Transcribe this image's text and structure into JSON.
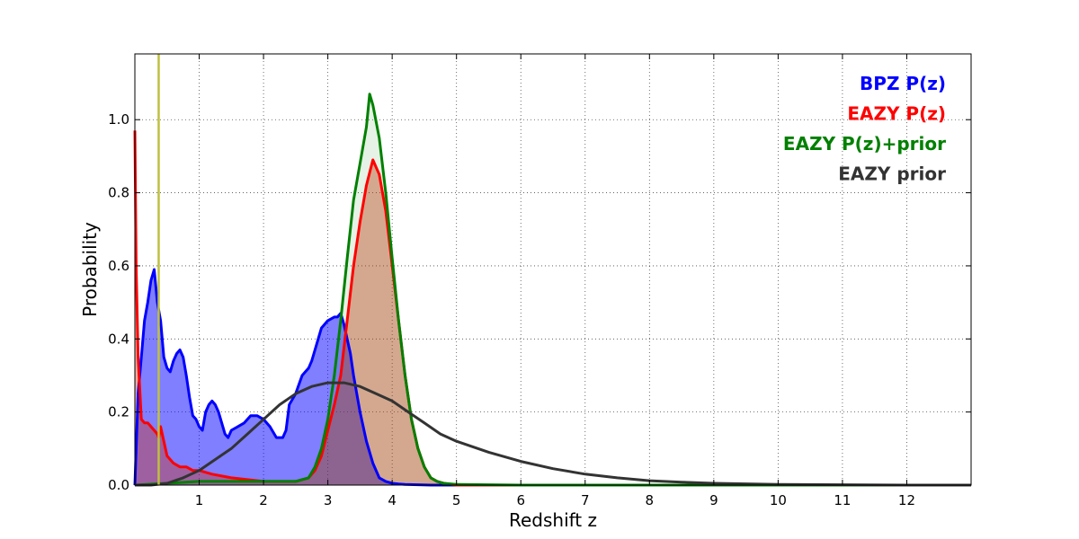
{
  "chart_data": {
    "type": "area",
    "xlabel": "Redshift z",
    "ylabel": "Probability",
    "xlim": [
      0,
      13
    ],
    "ylim": [
      0,
      1.18
    ],
    "x_ticks": [
      1,
      2,
      3,
      4,
      5,
      6,
      7,
      8,
      9,
      10,
      11,
      12
    ],
    "y_ticks": [
      0.0,
      0.2,
      0.4,
      0.6,
      0.8,
      1.0
    ],
    "y_tick_labels": [
      "0.0",
      "0.2",
      "0.4",
      "0.6",
      "0.8",
      "1.0"
    ],
    "grid": true,
    "legend_position": "top-right",
    "vline": {
      "x": 0.37,
      "color": "#bfbf3f"
    },
    "series": [
      {
        "name": "BPZ P(z)",
        "color": "#0000ff",
        "fill": "#0000ff",
        "fill_opacity": 0.5,
        "x": [
          0,
          0.05,
          0.1,
          0.15,
          0.2,
          0.25,
          0.3,
          0.35,
          0.4,
          0.45,
          0.5,
          0.55,
          0.6,
          0.65,
          0.7,
          0.75,
          0.8,
          0.85,
          0.9,
          0.95,
          1.0,
          1.05,
          1.1,
          1.15,
          1.2,
          1.25,
          1.3,
          1.35,
          1.4,
          1.45,
          1.5,
          1.6,
          1.7,
          1.8,
          1.9,
          2.0,
          2.1,
          2.2,
          2.3,
          2.35,
          2.4,
          2.5,
          2.6,
          2.7,
          2.75,
          2.8,
          2.9,
          3.0,
          3.1,
          3.15,
          3.2,
          3.25,
          3.3,
          3.35,
          3.4,
          3.5,
          3.6,
          3.7,
          3.8,
          3.9,
          4.0,
          4.1,
          4.2,
          4.4,
          4.6,
          5.0,
          6.0,
          8.0,
          10.0,
          12.0,
          13.0
        ],
        "y": [
          0.0,
          0.25,
          0.35,
          0.45,
          0.5,
          0.56,
          0.59,
          0.5,
          0.45,
          0.35,
          0.32,
          0.31,
          0.34,
          0.36,
          0.37,
          0.35,
          0.3,
          0.24,
          0.19,
          0.18,
          0.16,
          0.15,
          0.2,
          0.22,
          0.23,
          0.22,
          0.2,
          0.17,
          0.14,
          0.13,
          0.15,
          0.16,
          0.17,
          0.19,
          0.19,
          0.18,
          0.16,
          0.13,
          0.13,
          0.15,
          0.22,
          0.25,
          0.3,
          0.32,
          0.34,
          0.37,
          0.43,
          0.45,
          0.46,
          0.46,
          0.47,
          0.44,
          0.4,
          0.36,
          0.3,
          0.2,
          0.12,
          0.06,
          0.02,
          0.01,
          0.005,
          0.003,
          0.002,
          0.001,
          0.0,
          0.0,
          0.0,
          0.0,
          0.0,
          0.0,
          0.0
        ]
      },
      {
        "name": "EAZY P(z)",
        "color": "#ff0000",
        "fill": "#cc3311",
        "fill_opacity": 0.4,
        "x": [
          0,
          0.02,
          0.05,
          0.1,
          0.15,
          0.2,
          0.25,
          0.3,
          0.35,
          0.37,
          0.4,
          0.5,
          0.6,
          0.7,
          0.8,
          0.9,
          1.0,
          1.2,
          1.5,
          2.0,
          2.5,
          2.7,
          2.8,
          2.9,
          3.0,
          3.1,
          3.2,
          3.3,
          3.4,
          3.5,
          3.6,
          3.7,
          3.8,
          3.9,
          4.0,
          4.1,
          4.2,
          4.3,
          4.4,
          4.5,
          4.6,
          4.7,
          4.8,
          5.0,
          6.0,
          8.0,
          10.0,
          13.0
        ],
        "y": [
          0.97,
          0.6,
          0.35,
          0.18,
          0.17,
          0.17,
          0.16,
          0.15,
          0.14,
          0.13,
          0.16,
          0.08,
          0.06,
          0.05,
          0.05,
          0.04,
          0.04,
          0.03,
          0.02,
          0.01,
          0.01,
          0.02,
          0.04,
          0.08,
          0.15,
          0.22,
          0.3,
          0.45,
          0.6,
          0.72,
          0.82,
          0.89,
          0.85,
          0.75,
          0.6,
          0.45,
          0.3,
          0.18,
          0.1,
          0.05,
          0.02,
          0.01,
          0.005,
          0.0,
          0.0,
          0.0,
          0.0,
          0.0
        ]
      },
      {
        "name": "EAZY P(z)+prior",
        "color": "#008000",
        "fill": "#008000",
        "fill_opacity": 0.1,
        "x": [
          0,
          0.5,
          1.0,
          1.5,
          2.0,
          2.5,
          2.7,
          2.8,
          2.9,
          3.0,
          3.1,
          3.2,
          3.3,
          3.4,
          3.5,
          3.6,
          3.65,
          3.7,
          3.8,
          3.9,
          4.0,
          4.1,
          4.2,
          4.3,
          4.4,
          4.5,
          4.6,
          4.7,
          4.8,
          5.0,
          6.0,
          8.0,
          10.0,
          13.0
        ],
        "y": [
          0.0,
          0.005,
          0.01,
          0.01,
          0.01,
          0.01,
          0.02,
          0.05,
          0.1,
          0.18,
          0.3,
          0.45,
          0.62,
          0.78,
          0.88,
          0.98,
          1.07,
          1.04,
          0.95,
          0.8,
          0.62,
          0.45,
          0.3,
          0.18,
          0.1,
          0.05,
          0.02,
          0.01,
          0.005,
          0.002,
          0.0,
          0.0,
          0.0,
          0.0
        ]
      },
      {
        "name": "EAZY prior",
        "color": "#333333",
        "fill": "none",
        "fill_opacity": 0,
        "x": [
          0,
          0.25,
          0.5,
          0.75,
          1.0,
          1.25,
          1.5,
          1.75,
          2.0,
          2.25,
          2.5,
          2.75,
          3.0,
          3.25,
          3.5,
          3.75,
          4.0,
          4.25,
          4.5,
          4.75,
          5.0,
          5.5,
          6.0,
          6.5,
          7.0,
          7.5,
          8.0,
          8.5,
          9.0,
          10.0,
          11.0,
          12.0,
          13.0
        ],
        "y": [
          0.0,
          0.0,
          0.005,
          0.02,
          0.04,
          0.07,
          0.1,
          0.14,
          0.18,
          0.22,
          0.25,
          0.27,
          0.28,
          0.28,
          0.27,
          0.25,
          0.23,
          0.2,
          0.17,
          0.14,
          0.12,
          0.09,
          0.065,
          0.045,
          0.03,
          0.02,
          0.012,
          0.008,
          0.005,
          0.002,
          0.001,
          0.0,
          0.0
        ]
      }
    ]
  }
}
